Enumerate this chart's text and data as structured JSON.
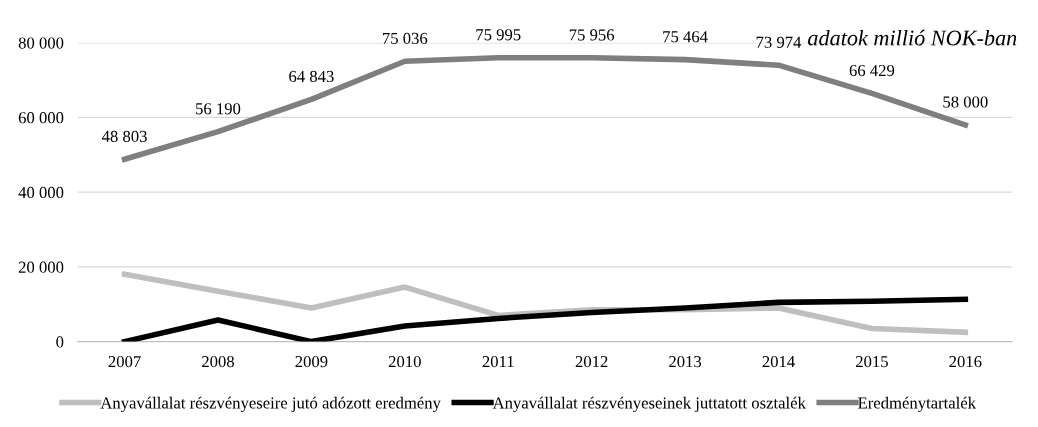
{
  "chart_data": {
    "type": "line",
    "annotations": [
      "adatok millió NOK-ban"
    ],
    "categories": [
      "2007",
      "2008",
      "2009",
      "2010",
      "2011",
      "2012",
      "2013",
      "2014",
      "2015",
      "2016"
    ],
    "series": [
      {
        "name": "Anyavállalat részvényeseire jutó adózott eredmény",
        "color": "#bfbfbf",
        "values": [
          18000,
          13500,
          9000,
          14600,
          7000,
          8500,
          8500,
          9000,
          3500,
          2500
        ]
      },
      {
        "name": "Anyavállalat részvényeseinek juttatott osztalék",
        "color": "#000000",
        "values": [
          0,
          5800,
          0,
          4200,
          6200,
          7800,
          9000,
          10500,
          10800,
          11300
        ]
      },
      {
        "name": "Eredménytartalék",
        "color": "#7f7f7f",
        "values": [
          48803,
          56190,
          64843,
          75036,
          75995,
          75956,
          75464,
          73974,
          66429,
          58000
        ],
        "value_labels": [
          "48 803",
          "56 190",
          "64 843",
          "75 036",
          "75 995",
          "75 956",
          "75 464",
          "73 974",
          "66 429",
          "58 000"
        ]
      }
    ],
    "ylim": [
      0,
      80000
    ],
    "yticks": [
      {
        "value": 0,
        "label": "0"
      },
      {
        "value": 20000,
        "label": "20 000"
      },
      {
        "value": 40000,
        "label": "40 000"
      },
      {
        "value": 60000,
        "label": "60 000"
      },
      {
        "value": 80000,
        "label": "80 000"
      }
    ],
    "grid": "y",
    "legend": "bottom",
    "marker": "none",
    "line_style": "solid"
  }
}
